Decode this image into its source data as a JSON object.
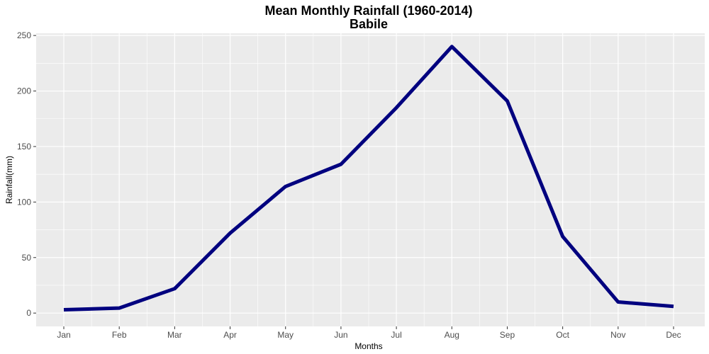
{
  "chart_data": {
    "type": "line",
    "title": "Mean Monthly Rainfall (1960-2014)",
    "subtitle": "Babile",
    "xlabel": "Months",
    "ylabel": "Rainfall(mm)",
    "categories": [
      "Jan",
      "Feb",
      "Mar",
      "Apr",
      "May",
      "Jun",
      "Jul",
      "Aug",
      "Sep",
      "Oct",
      "Nov",
      "Dec"
    ],
    "series": [
      {
        "values": [
          3,
          4.5,
          22,
          72,
          114,
          134,
          185,
          240,
          191,
          69,
          10,
          6
        ],
        "color": "#00007f"
      }
    ],
    "ylim": [
      -12,
      252
    ],
    "yticks": [
      0,
      50,
      100,
      150,
      200,
      250
    ],
    "yticks_labels": [
      "0",
      "50",
      "100",
      "150",
      "200",
      "250"
    ],
    "grid": true,
    "panel_background": "#ebebeb",
    "grid_color": "#ffffff"
  }
}
